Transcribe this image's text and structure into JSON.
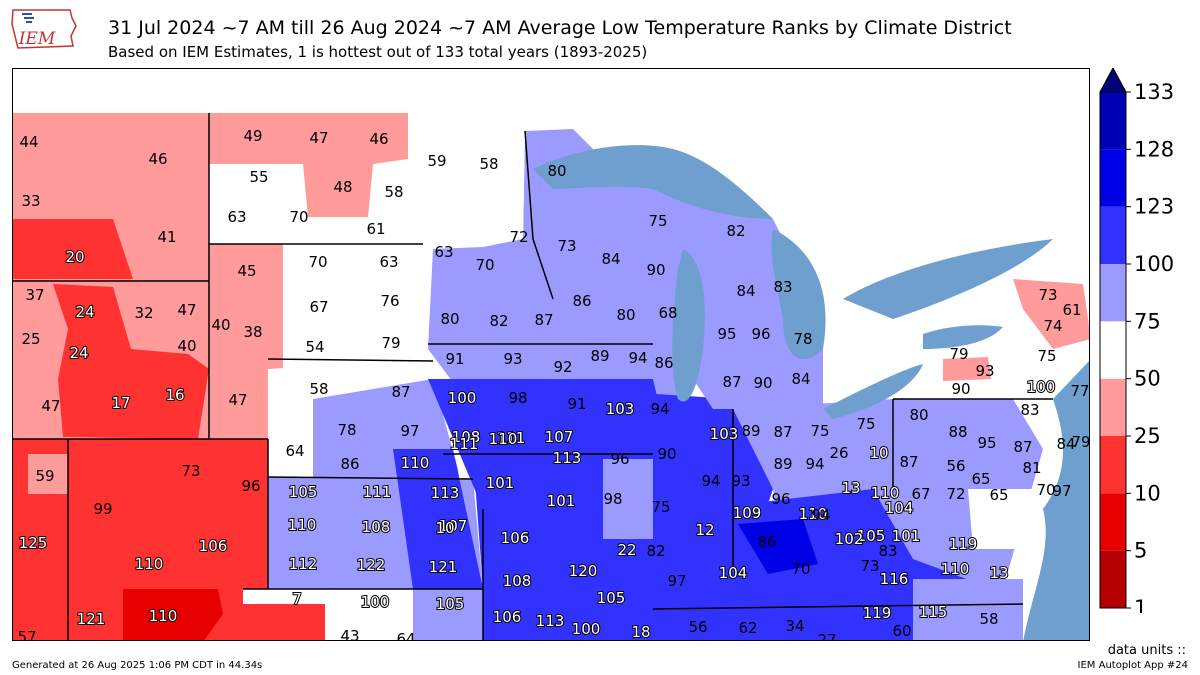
{
  "header": {
    "title": "31 Jul 2024 ~7 AM till 26 Aug 2024 ~7 AM Average Low Temperature Ranks by Climate District",
    "subtitle": "Based on IEM Estimates, 1 is hottest out of 133 total years (1893-2025)",
    "logo_text": "IEM"
  },
  "colors": {
    "water": "#6f9fcf",
    "land_outside": "#ffffff",
    "scale": [
      "#b40000",
      "#e60000",
      "#ff3232",
      "#ff9b9b",
      "#ffffff",
      "#9b9bff",
      "#3232ff",
      "#0000e6",
      "#0000b4",
      "#00007d"
    ]
  },
  "colorbar": {
    "ticks": [
      "1",
      "5",
      "10",
      "25",
      "50",
      "75",
      "100",
      "123",
      "128",
      "133"
    ],
    "extend": "max"
  },
  "districts": [
    {
      "label": "44",
      "rank": 44
    },
    {
      "label": "46",
      "rank": 46
    },
    {
      "label": "33",
      "rank": 33
    },
    {
      "label": "41",
      "rank": 41
    },
    {
      "label": "20",
      "rank": 20
    },
    {
      "label": "49",
      "rank": 49
    },
    {
      "label": "47",
      "rank": 47
    },
    {
      "label": "46",
      "rank": 46
    },
    {
      "label": "55",
      "rank": 55
    },
    {
      "label": "48",
      "rank": 48
    },
    {
      "label": "58",
      "rank": 58
    },
    {
      "label": "63",
      "rank": 63
    },
    {
      "label": "70",
      "rank": 70
    },
    {
      "label": "61",
      "rank": 61
    },
    {
      "label": "59",
      "rank": 59
    },
    {
      "label": "58",
      "rank": 58
    },
    {
      "label": "80",
      "rank": 80
    },
    {
      "label": "75",
      "rank": 75
    },
    {
      "label": "82",
      "rank": 82
    },
    {
      "label": "63",
      "rank": 63
    },
    {
      "label": "72",
      "rank": 72
    },
    {
      "label": "73",
      "rank": 73
    },
    {
      "label": "70",
      "rank": 70
    },
    {
      "label": "45",
      "rank": 45
    },
    {
      "label": "70",
      "rank": 70
    },
    {
      "label": "63",
      "rank": 63
    },
    {
      "label": "84",
      "rank": 84
    },
    {
      "label": "90",
      "rank": 90
    },
    {
      "label": "84",
      "rank": 84
    },
    {
      "label": "83",
      "rank": 83
    },
    {
      "label": "37",
      "rank": 37
    },
    {
      "label": "24",
      "rank": 24
    },
    {
      "label": "32",
      "rank": 32
    },
    {
      "label": "47",
      "rank": 47
    },
    {
      "label": "25",
      "rank": 25
    },
    {
      "label": "40",
      "rank": 40
    },
    {
      "label": "40",
      "rank": 40
    },
    {
      "label": "38",
      "rank": 38
    },
    {
      "label": "24",
      "rank": 24
    },
    {
      "label": "76",
      "rank": 76
    },
    {
      "label": "67",
      "rank": 67
    },
    {
      "label": "86",
      "rank": 86
    },
    {
      "label": "80",
      "rank": 80
    },
    {
      "label": "82",
      "rank": 82
    },
    {
      "label": "87",
      "rank": 87
    },
    {
      "label": "80",
      "rank": 80
    },
    {
      "label": "68",
      "rank": 68
    },
    {
      "label": "95",
      "rank": 95
    },
    {
      "label": "96",
      "rank": 96
    },
    {
      "label": "78",
      "rank": 78
    },
    {
      "label": "54",
      "rank": 54
    },
    {
      "label": "79",
      "rank": 79
    },
    {
      "label": "91",
      "rank": 91
    },
    {
      "label": "93",
      "rank": 93
    },
    {
      "label": "92",
      "rank": 92
    },
    {
      "label": "89",
      "rank": 89
    },
    {
      "label": "94",
      "rank": 94
    },
    {
      "label": "86",
      "rank": 86
    },
    {
      "label": "87",
      "rank": 87
    },
    {
      "label": "90",
      "rank": 90
    },
    {
      "label": "84",
      "rank": 84
    },
    {
      "label": "47",
      "rank": 47
    },
    {
      "label": "17",
      "rank": 17
    },
    {
      "label": "16",
      "rank": 16
    },
    {
      "label": "47",
      "rank": 47
    },
    {
      "label": "58",
      "rank": 58
    },
    {
      "label": "87",
      "rank": 87
    },
    {
      "label": "100",
      "rank": 100
    },
    {
      "label": "98",
      "rank": 98
    },
    {
      "label": "91",
      "rank": 91
    },
    {
      "label": "103",
      "rank": 103
    },
    {
      "label": "94",
      "rank": 94
    },
    {
      "label": "78",
      "rank": 78
    },
    {
      "label": "97",
      "rank": 97
    },
    {
      "label": "108",
      "rank": 108
    },
    {
      "label": "111",
      "rank": 111
    },
    {
      "label": "107",
      "rank": 107
    },
    {
      "label": "103",
      "rank": 103
    },
    {
      "label": "89",
      "rank": 89
    },
    {
      "label": "87",
      "rank": 87
    },
    {
      "label": "75",
      "rank": 75
    },
    {
      "label": "75",
      "rank": 75
    },
    {
      "label": "64",
      "rank": 64
    },
    {
      "label": "86",
      "rank": 86
    },
    {
      "label": "110",
      "rank": 110
    },
    {
      "label": "111",
      "rank": 111
    },
    {
      "label": "110",
      "rank": 110
    },
    {
      "label": "113",
      "rank": 113
    },
    {
      "label": "96",
      "rank": 96
    },
    {
      "label": "90",
      "rank": 90
    },
    {
      "label": "89",
      "rank": 89
    },
    {
      "label": "26",
      "rank": 26
    },
    {
      "label": "10",
      "rank": 10
    },
    {
      "label": "59",
      "rank": 59
    },
    {
      "label": "73",
      "rank": 73
    },
    {
      "label": "96",
      "rank": 96
    },
    {
      "label": "105",
      "rank": 105
    },
    {
      "label": "111",
      "rank": 111
    },
    {
      "label": "113",
      "rank": 113
    },
    {
      "label": "101",
      "rank": 101
    },
    {
      "label": "94",
      "rank": 94
    },
    {
      "label": "93",
      "rank": 93
    },
    {
      "label": "94",
      "rank": 94
    },
    {
      "label": "13",
      "rank": 13
    },
    {
      "label": "110",
      "rank": 110
    },
    {
      "label": "99",
      "rank": 99
    },
    {
      "label": "107",
      "rank": 107
    },
    {
      "label": "101",
      "rank": 101
    },
    {
      "label": "98",
      "rank": 98
    },
    {
      "label": "75",
      "rank": 75
    },
    {
      "label": "96",
      "rank": 96
    },
    {
      "label": "110",
      "rank": 110
    },
    {
      "label": "104",
      "rank": 104
    },
    {
      "label": "110",
      "rank": 110
    },
    {
      "label": "108",
      "rank": 108
    },
    {
      "label": "10",
      "rank": 10
    },
    {
      "label": "12",
      "rank": 12
    },
    {
      "label": "109",
      "rank": 109
    },
    {
      "label": "94",
      "rank": 94
    },
    {
      "label": "105",
      "rank": 105
    },
    {
      "label": "125",
      "rank": 125
    },
    {
      "label": "106",
      "rank": 106
    },
    {
      "label": "106",
      "rank": 106
    },
    {
      "label": "22",
      "rank": 22
    },
    {
      "label": "82",
      "rank": 82
    },
    {
      "label": "86",
      "rank": 86
    },
    {
      "label": "102",
      "rank": 102
    },
    {
      "label": "101",
      "rank": 101
    },
    {
      "label": "110",
      "rank": 110
    },
    {
      "label": "112",
      "rank": 112
    },
    {
      "label": "122",
      "rank": 122
    },
    {
      "label": "121",
      "rank": 121
    },
    {
      "label": "108",
      "rank": 108
    },
    {
      "label": "120",
      "rank": 120
    },
    {
      "label": "97",
      "rank": 97
    },
    {
      "label": "104",
      "rank": 104
    },
    {
      "label": "70",
      "rank": 70
    },
    {
      "label": "73",
      "rank": 73
    },
    {
      "label": "83",
      "rank": 83
    },
    {
      "label": "110",
      "rank": 110
    },
    {
      "label": "116",
      "rank": 116
    },
    {
      "label": "119",
      "rank": 119
    },
    {
      "label": "13",
      "rank": 13
    },
    {
      "label": "7",
      "rank": 7
    },
    {
      "label": "100",
      "rank": 100
    },
    {
      "label": "105",
      "rank": 105
    },
    {
      "label": "105",
      "rank": 105
    },
    {
      "label": "119",
      "rank": 119
    },
    {
      "label": "115",
      "rank": 115
    },
    {
      "label": "121",
      "rank": 121
    },
    {
      "label": "110",
      "rank": 110
    },
    {
      "label": "106",
      "rank": 106
    },
    {
      "label": "113",
      "rank": 113
    },
    {
      "label": "100",
      "rank": 100
    },
    {
      "label": "18",
      "rank": 18
    },
    {
      "label": "56",
      "rank": 56
    },
    {
      "label": "62",
      "rank": 62
    },
    {
      "label": "34",
      "rank": 34
    },
    {
      "label": "27",
      "rank": 27
    },
    {
      "label": "60",
      "rank": 60
    },
    {
      "label": "58",
      "rank": 58
    },
    {
      "label": "57",
      "rank": 57
    },
    {
      "label": "43",
      "rank": 43
    },
    {
      "label": "64",
      "rank": 64
    },
    {
      "label": "73",
      "rank": 73
    },
    {
      "label": "61",
      "rank": 61
    },
    {
      "label": "74",
      "rank": 74
    },
    {
      "label": "79",
      "rank": 79
    },
    {
      "label": "75",
      "rank": 75
    },
    {
      "label": "93",
      "rank": 93
    },
    {
      "label": "90",
      "rank": 90
    },
    {
      "label": "100",
      "rank": 100
    },
    {
      "label": "77",
      "rank": 77
    },
    {
      "label": "80",
      "rank": 80
    },
    {
      "label": "83",
      "rank": 83
    },
    {
      "label": "88",
      "rank": 88
    },
    {
      "label": "95",
      "rank": 95
    },
    {
      "label": "84",
      "rank": 84
    },
    {
      "label": "87",
      "rank": 87
    },
    {
      "label": "79",
      "rank": 79
    },
    {
      "label": "87",
      "rank": 87
    },
    {
      "label": "56",
      "rank": 56
    },
    {
      "label": "81",
      "rank": 81
    },
    {
      "label": "65",
      "rank": 65
    },
    {
      "label": "67",
      "rank": 67
    },
    {
      "label": "72",
      "rank": 72
    },
    {
      "label": "65",
      "rank": 65
    },
    {
      "label": "70",
      "rank": 70
    },
    {
      "label": "97",
      "rank": 97
    }
  ],
  "footer": {
    "units_label": "data units ::",
    "generated": "Generated at 26 Aug 2025 1:06 PM CDT in 44.34s",
    "app": "IEM Autoplot App #24"
  }
}
